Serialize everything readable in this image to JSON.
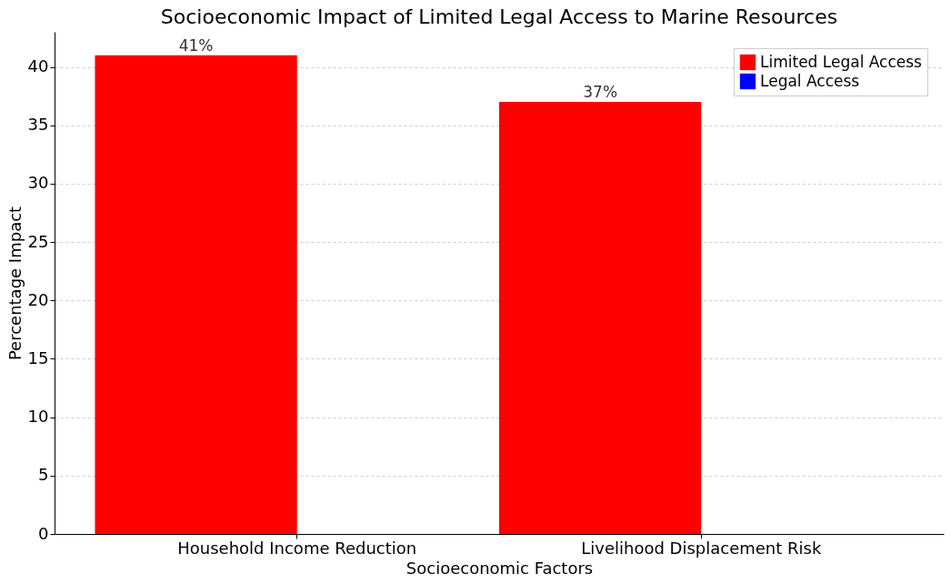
{
  "chart_data": {
    "type": "bar",
    "title": "Socioeconomic Impact of Limited Legal Access to Marine Resources",
    "xlabel": "Socioeconomic Factors",
    "ylabel": "Percentage Impact",
    "categories": [
      "Household Income Reduction",
      "Livelihood Displacement Risk"
    ],
    "series": [
      {
        "name": "Limited Legal Access",
        "color": "#ff0000",
        "values": [
          41,
          37
        ],
        "value_labels": [
          "41%",
          "37%"
        ]
      },
      {
        "name": "Legal Access",
        "color": "#0000ff",
        "values": [
          null,
          null
        ]
      }
    ],
    "ylim": [
      0,
      43
    ],
    "yticks": [
      0,
      5,
      10,
      15,
      20,
      25,
      30,
      35,
      40
    ],
    "grid": "y",
    "legend": "top right"
  }
}
